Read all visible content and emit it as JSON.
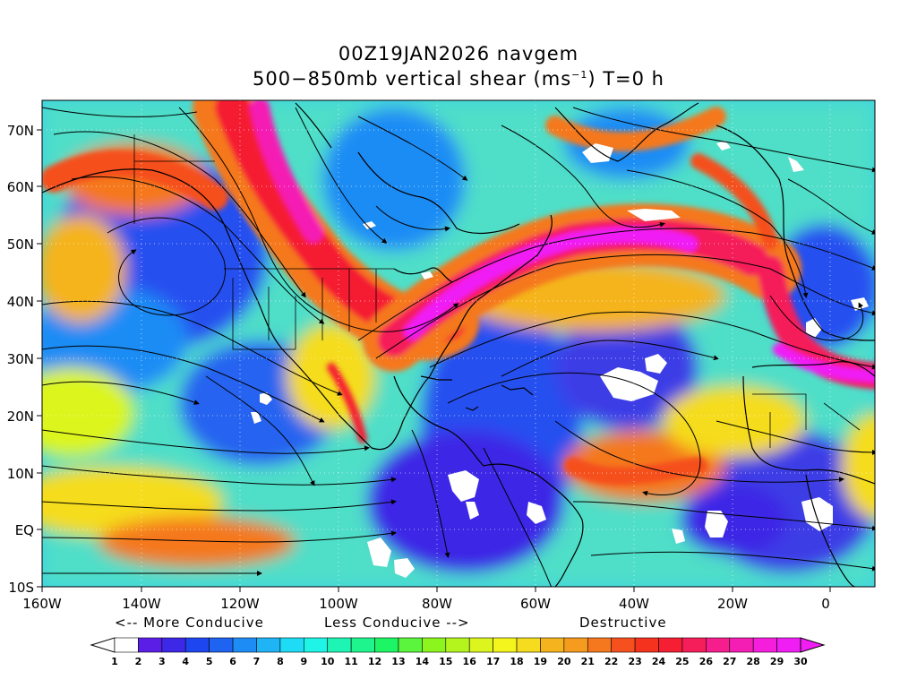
{
  "header": {
    "line1": "00Z19JAN2026 navgem",
    "line2_prefix": "500−850mb vertical shear (ms",
    "line2_sup": "−1",
    "line2_suffix": ") T=0 h"
  },
  "axes": {
    "lat_labels": [
      "70N",
      "60N",
      "50N",
      "40N",
      "30N",
      "20N",
      "10N",
      "EQ",
      "10S"
    ],
    "lon_labels": [
      "160W",
      "140W",
      "120W",
      "100W",
      "80W",
      "60W",
      "40W",
      "20W",
      "0"
    ]
  },
  "legend": {
    "more_conducive": "<-- More Conducive",
    "less_conducive": "Less Conducive -->",
    "destructive": "Destructive",
    "ticks": [
      "1",
      "2",
      "3",
      "4",
      "5",
      "6",
      "7",
      "8",
      "9",
      "10",
      "11",
      "12",
      "13",
      "14",
      "15",
      "16",
      "17",
      "18",
      "19",
      "20",
      "21",
      "22",
      "23",
      "24",
      "25",
      "26",
      "27",
      "28",
      "29",
      "30"
    ],
    "colors": [
      "#ffffff",
      "#5a1ee6",
      "#3c28e6",
      "#1e46f0",
      "#1e64f0",
      "#1e8cf5",
      "#1eb4f5",
      "#1edcf5",
      "#1ef5e6",
      "#1ef5b4",
      "#1ef58c",
      "#1ef564",
      "#5af53c",
      "#8cf51e",
      "#b4f51e",
      "#dcf51e",
      "#f5f51e",
      "#f5dc1e",
      "#f5b41e",
      "#f59b1e",
      "#f5781e",
      "#f5501e",
      "#f5321e",
      "#f51e32",
      "#f51e5a",
      "#f51e8c",
      "#f51eb4",
      "#f51edc",
      "#f01ef5"
    ]
  }
}
